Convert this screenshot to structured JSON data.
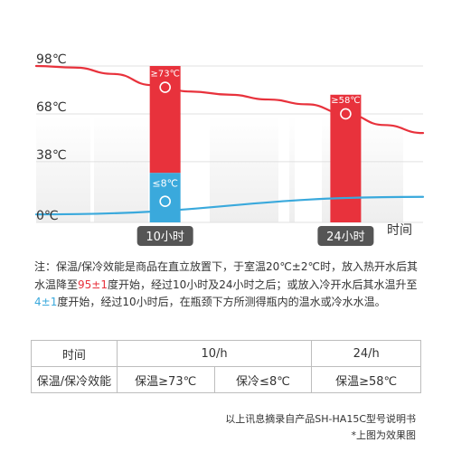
{
  "chart_data": {
    "type": "line",
    "y_unit": "℃",
    "y_ticks": [
      {
        "label": "98℃",
        "value": 98
      },
      {
        "label": "68℃",
        "value": 68
      },
      {
        "label": "38℃",
        "value": 38
      },
      {
        "label": "0℃",
        "value": 0
      }
    ],
    "ylim": [
      0,
      98
    ],
    "xlabel": "时间",
    "grid": true,
    "categories": [
      "10小时",
      "24小时"
    ],
    "x_hours_range": [
      0,
      30
    ],
    "series": [
      {
        "color": "#e8323c",
        "points": [
          [
            0,
            98
          ],
          [
            3,
            97
          ],
          [
            6,
            93
          ],
          [
            9,
            86
          ],
          [
            12,
            82
          ],
          [
            15,
            80
          ],
          [
            18,
            77
          ],
          [
            21,
            74
          ],
          [
            24,
            68
          ],
          [
            27,
            61
          ],
          [
            30,
            56
          ]
        ]
      },
      {
        "color": "#3aa9dc",
        "points": [
          [
            0,
            5
          ],
          [
            30,
            16
          ]
        ]
      }
    ],
    "bars": [
      {
        "category": "10小时",
        "hour": 10,
        "label": "≥73℃",
        "top": 98,
        "split": 31,
        "color_top": "#e8323c",
        "color_bottom": "#3aa9dc",
        "bottom_label": "≤8℃"
      },
      {
        "category": "24小时",
        "hour": 24,
        "label": "≥58℃",
        "top": 80,
        "color_top": "#e8323c"
      }
    ]
  },
  "note": {
    "p1": "注：保温/保冷效能是商品在直立放置下，于室温20℃±2℃时，放入热开水后其水温降至",
    "hl1": "95±1",
    "p2": "度开始，经过10小时及24小时之后；或放入冷开水后其水温升至",
    "hl2": "4±1",
    "p3": "度开始，经过10小时后，在瓶颈下方所测得瓶内的温水或冷水水温。"
  },
  "table": {
    "row1": {
      "c1": "时间",
      "c2": "10/h",
      "c3": "24/h"
    },
    "row2": {
      "c1": "保温/保冷效能",
      "c2": "保温≥73℃",
      "c3": "保冷≤8℃",
      "c4": "保温≥58℃"
    }
  },
  "footer": {
    "line1": "以上讯息摘录自产品SH-HA15C型号说明书",
    "line2": "*上图为效果图"
  },
  "colors": {
    "hot": "#e8323c",
    "cold": "#3aa9dc",
    "badge": "#555555",
    "grid": "#e0e0e0"
  }
}
